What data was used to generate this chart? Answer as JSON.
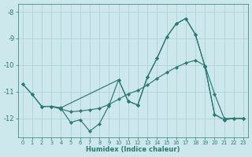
{
  "xlabel": "Humidex (Indice chaleur)",
  "xlim": [
    -0.5,
    23.5
  ],
  "ylim": [
    -12.7,
    -7.7
  ],
  "yticks": [
    -12,
    -11,
    -10,
    -9,
    -8
  ],
  "xticks": [
    0,
    1,
    2,
    3,
    4,
    5,
    6,
    7,
    8,
    9,
    10,
    11,
    12,
    13,
    14,
    15,
    16,
    17,
    18,
    19,
    20,
    21,
    22,
    23
  ],
  "bg_color": "#cde8ec",
  "line_color": "#2a7a6f",
  "grid_color": "#aacfd5",
  "lines": [
    {
      "x": [
        0,
        1,
        2,
        3,
        4,
        10,
        11,
        12,
        13,
        14,
        15,
        16,
        17,
        18,
        19,
        20,
        21,
        22,
        23
      ],
      "y": [
        -10.7,
        -11.1,
        -11.55,
        -11.55,
        -11.6,
        -10.55,
        -11.35,
        -11.5,
        -10.45,
        -9.75,
        -8.95,
        -8.45,
        -8.25,
        -8.85,
        -10.05,
        -11.85,
        -12.05,
        -12.0,
        -12.0
      ]
    },
    {
      "x": [
        2,
        3,
        4,
        5,
        6,
        7,
        8,
        9,
        10,
        11,
        12,
        13,
        14,
        15,
        16,
        17,
        18,
        19,
        20,
        21,
        22,
        23
      ],
      "y": [
        -11.55,
        -11.55,
        -11.65,
        -11.75,
        -11.72,
        -11.68,
        -11.62,
        -11.48,
        -11.28,
        -11.08,
        -10.95,
        -10.75,
        -10.5,
        -10.28,
        -10.08,
        -9.92,
        -9.82,
        -10.02,
        -11.08,
        -12.0,
        -12.0,
        -12.0
      ]
    },
    {
      "x": [
        0,
        1,
        2,
        3,
        4,
        5,
        6,
        7,
        8,
        9,
        10,
        11,
        12,
        13,
        14,
        15,
        16,
        17,
        18,
        19,
        20,
        21,
        22,
        23
      ],
      "y": [
        -10.7,
        -11.1,
        -11.55,
        -11.55,
        -11.62,
        -12.15,
        -12.05,
        -12.48,
        -12.2,
        -11.52,
        -10.55,
        -11.35,
        -11.5,
        -10.45,
        -9.75,
        -8.95,
        -8.45,
        -8.25,
        -8.85,
        -10.05,
        -11.85,
        -12.05,
        -12.0,
        -12.0
      ]
    }
  ]
}
